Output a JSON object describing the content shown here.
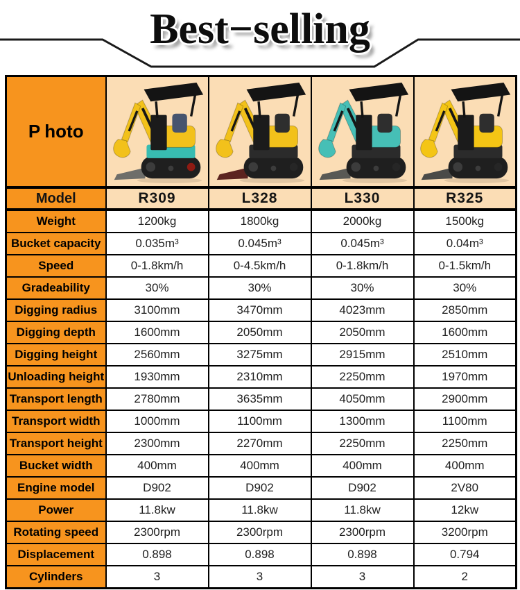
{
  "banner": {
    "title": "Best−selling"
  },
  "table": {
    "photo_label": "Photo",
    "model_label": "Model",
    "models": [
      {
        "name": "R309",
        "body_color": "#F2C11B",
        "lower_color": "#38BCB1",
        "blade_color": "#6E6E6A",
        "hub_color": "#8F1B13",
        "seat_color": "#46546E"
      },
      {
        "name": "L328",
        "body_color": "#F2C11B",
        "lower_color": "#2B2B2B",
        "blade_color": "#5C2420",
        "hub_color": "#262626",
        "seat_color": "#2E2E2E"
      },
      {
        "name": "L330",
        "body_color": "#46BFB6",
        "lower_color": "#2B2B2B",
        "blade_color": "#595955",
        "hub_color": "#262626",
        "seat_color": "#2E2E2E"
      },
      {
        "name": "R325",
        "body_color": "#F4C515",
        "lower_color": "#2B2B2B",
        "blade_color": "#4B4B48",
        "hub_color": "#262626",
        "seat_color": "#2E2E2E"
      }
    ],
    "rows": [
      {
        "label": "Weight",
        "values": [
          "1200kg",
          "1800kg",
          "2000kg",
          "1500kg"
        ]
      },
      {
        "label": "Bucket capacity",
        "values": [
          "0.035m³",
          "0.045m³",
          "0.045m³",
          "0.04m³"
        ]
      },
      {
        "label": "Speed",
        "values": [
          "0-1.8km/h",
          "0-4.5km/h",
          "0-1.8km/h",
          "0-1.5km/h"
        ]
      },
      {
        "label": "Gradeability",
        "values": [
          "30%",
          "30%",
          "30%",
          "30%"
        ]
      },
      {
        "label": "Digging radius",
        "values": [
          "3100mm",
          "3470mm",
          "4023mm",
          "2850mm"
        ]
      },
      {
        "label": "Digging depth",
        "values": [
          "1600mm",
          "2050mm",
          "2050mm",
          "1600mm"
        ]
      },
      {
        "label": "Digging height",
        "values": [
          "2560mm",
          "3275mm",
          "2915mm",
          "2510mm"
        ]
      },
      {
        "label": "Unloading height",
        "values": [
          "1930mm",
          "2310mm",
          "2250mm",
          "1970mm"
        ]
      },
      {
        "label": "Transport length",
        "values": [
          "2780mm",
          "3635mm",
          "4050mm",
          "2900mm"
        ]
      },
      {
        "label": "Transport width",
        "values": [
          "1000mm",
          "1100mm",
          "1300mm",
          "1100mm"
        ]
      },
      {
        "label": "Transport height",
        "values": [
          "2300mm",
          "2270mm",
          "2250mm",
          "2250mm"
        ]
      },
      {
        "label": "Bucket width",
        "values": [
          "400mm",
          "400mm",
          "400mm",
          "400mm"
        ]
      },
      {
        "label": "Engine model",
        "values": [
          "D902",
          "D902",
          "D902",
          "2V80"
        ]
      },
      {
        "label": "Power",
        "values": [
          "11.8kw",
          "11.8kw",
          "11.8kw",
          "12kw"
        ]
      },
      {
        "label": "Rotating speed",
        "values": [
          "2300rpm",
          "2300rpm",
          "2300rpm",
          "3200rpm"
        ]
      },
      {
        "label": "Displacement",
        "values": [
          "0.898",
          "0.898",
          "0.898",
          "0.794"
        ]
      },
      {
        "label": "Cylinders",
        "values": [
          "3",
          "3",
          "3",
          "2"
        ]
      }
    ],
    "colors": {
      "header_orange": "#F7941E",
      "photo_bg": "#FBDDB5",
      "border": "#000000"
    }
  }
}
